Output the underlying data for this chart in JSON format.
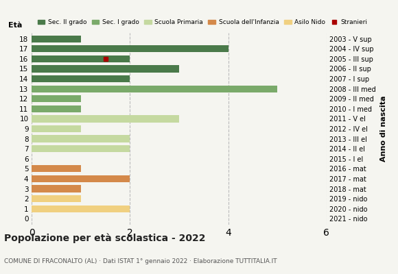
{
  "ages": [
    18,
    17,
    16,
    15,
    14,
    13,
    12,
    11,
    10,
    9,
    8,
    7,
    6,
    5,
    4,
    3,
    2,
    1,
    0
  ],
  "years": [
    "2003 - V sup",
    "2004 - IV sup",
    "2005 - III sup",
    "2006 - II sup",
    "2007 - I sup",
    "2008 - III med",
    "2009 - II med",
    "2010 - I med",
    "2011 - V el",
    "2012 - IV el",
    "2013 - III el",
    "2014 - II el",
    "2015 - I el",
    "2016 - mat",
    "2017 - mat",
    "2018 - mat",
    "2019 - nido",
    "2020 - nido",
    "2021 - nido"
  ],
  "values": [
    1,
    4,
    2,
    3,
    2,
    5,
    1,
    1,
    3,
    1,
    2,
    2,
    0,
    1,
    2,
    1,
    1,
    2,
    0
  ],
  "stranieri": [
    0,
    0,
    1,
    0,
    0,
    0,
    0,
    0,
    0,
    0,
    0,
    0,
    0,
    0,
    0,
    0,
    0,
    0,
    0
  ],
  "stranieri_x": [
    0,
    0,
    1.5,
    0,
    0,
    0,
    0,
    0,
    0,
    0,
    0,
    0,
    0,
    0,
    0,
    0,
    0,
    0,
    0
  ],
  "colors": {
    "sec2": "#4a7a4a",
    "sec1": "#7aaa6a",
    "primaria": "#c5d9a0",
    "infanzia": "#d4894a",
    "nido": "#f0d080",
    "stranieri": "#aa0000"
  },
  "bar_colors": [
    "sec2",
    "sec2",
    "sec2",
    "sec2",
    "sec2",
    "sec1",
    "sec1",
    "sec1",
    "primaria",
    "primaria",
    "primaria",
    "primaria",
    "primaria",
    "infanzia",
    "infanzia",
    "infanzia",
    "nido",
    "nido",
    "nido"
  ],
  "xlim": [
    0,
    6
  ],
  "xticks": [
    0,
    2,
    4,
    6
  ],
  "title": "Popolazione per età scolastica - 2022",
  "subtitle": "COMUNE DI FRACONALTO (AL) · Dati ISTAT 1° gennaio 2022 · Elaborazione TUTTITALIA.IT",
  "ylabel_left": "Età",
  "ylabel_right": "Anno di nascita",
  "legend_items": [
    "Sec. II grado",
    "Sec. I grado",
    "Scuola Primaria",
    "Scuola dell'Infanzia",
    "Asilo Nido",
    "Stranieri"
  ],
  "legend_colors": [
    "#4a7a4a",
    "#7aaa6a",
    "#c5d9a0",
    "#d4894a",
    "#f0d080",
    "#aa0000"
  ],
  "bg_color": "#f5f5f0",
  "bar_height": 0.7,
  "grid_color": "#bbbbbb"
}
